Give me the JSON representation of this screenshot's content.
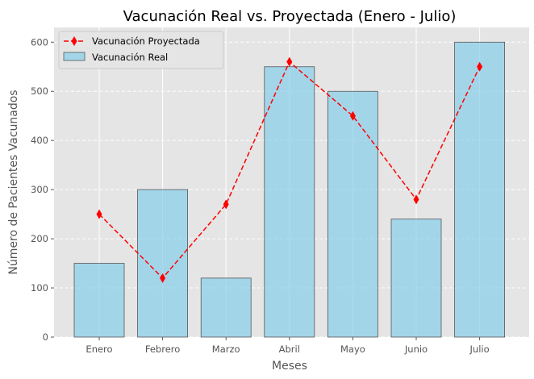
{
  "chart_data": {
    "type": "bar",
    "title": "Vacunación Real vs. Proyectada (Enero - Julio)",
    "xlabel": "Meses",
    "ylabel": "Número de Pacientes Vacunados",
    "categories": [
      "Enero",
      "Febrero",
      "Marzo",
      "Abril",
      "Mayo",
      "Junio",
      "Julio"
    ],
    "ylim": [
      0,
      630
    ],
    "yticks": [
      0,
      100,
      200,
      300,
      400,
      500,
      600
    ],
    "grid": true,
    "legend_position": "top-left",
    "series": [
      {
        "name": "Vacunación Real",
        "type": "bar",
        "values": [
          150,
          300,
          120,
          550,
          500,
          240,
          600
        ],
        "color": "#87ceeb"
      },
      {
        "name": "Vacunación Proyectada",
        "type": "line",
        "marker": "diamond",
        "linestyle": "dashed",
        "values": [
          250,
          120,
          270,
          560,
          450,
          280,
          550
        ],
        "color": "#ff0000"
      }
    ]
  }
}
